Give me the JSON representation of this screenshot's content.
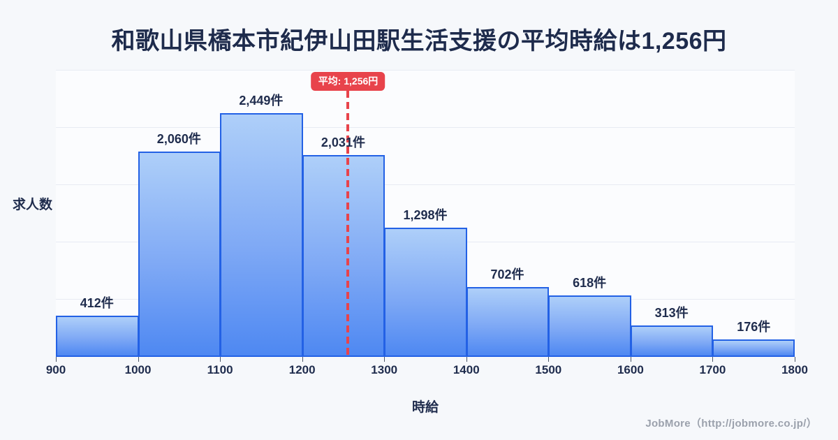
{
  "title": "和歌山県橋本市紀伊山田駅生活支援の平均時給は1,256円",
  "average_badge": {
    "label": "平均: 1,256円",
    "color": "#e8434b"
  },
  "axes": {
    "y_label": "求人数",
    "x_label": "時給"
  },
  "footer": {
    "credit": "JobMore（http://jobmore.co.jp/）"
  },
  "colors": {
    "background": "#f6f8fb",
    "plot_background": "#fbfcfe",
    "gridline": "#e7ebf3",
    "text_navy": "#1f2c4d",
    "bar_top": "#aecff9",
    "bar_bottom": "#4e88f2",
    "bar_border": "#2361e5",
    "mean_red": "#e8434b",
    "footer_gray": "#9ba1ac"
  },
  "chart_data": {
    "type": "bar",
    "title": "和歌山県橋本市紀伊山田駅生活支援の平均時給は1,256円",
    "xlabel": "時給",
    "ylabel": "求人数",
    "bin_edges": [
      900,
      1000,
      1100,
      1200,
      1300,
      1400,
      1500,
      1600,
      1700,
      1800
    ],
    "x_tick_labels": [
      "900",
      "1000",
      "1100",
      "1200",
      "1300",
      "1400",
      "1500",
      "1600",
      "1700",
      "1800"
    ],
    "values": [
      412,
      2060,
      2449,
      2031,
      1298,
      702,
      618,
      313,
      176
    ],
    "bar_labels": [
      "412件",
      "2,060件",
      "2,449件",
      "2,031件",
      "1,298件",
      "702件",
      "618件",
      "313件",
      "176件"
    ],
    "mean": 1256,
    "mean_label": "平均: 1,256円",
    "xlim": [
      900,
      1800
    ],
    "ylim": [
      0,
      2880
    ],
    "grid": "horizontal",
    "gridline_count": 6,
    "legend": "none"
  }
}
